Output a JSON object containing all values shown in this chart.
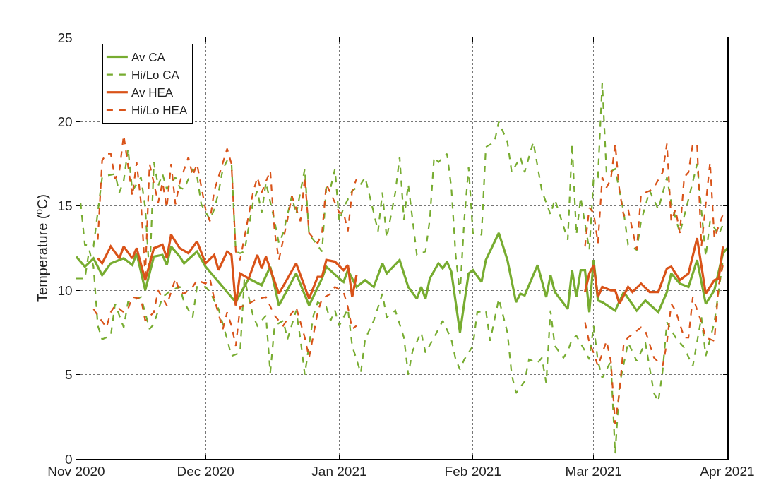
{
  "chart_data": {
    "type": "line",
    "ylabel": "Temperature (ºC)",
    "ylim": [
      0,
      25
    ],
    "yticks": [
      0,
      5,
      10,
      15,
      20,
      25
    ],
    "xlim": [
      "2020-11-01",
      "2021-04-01"
    ],
    "xticks": [
      {
        "value": "2020-11-01",
        "label": "Nov 2020"
      },
      {
        "value": "2020-12-01",
        "label": "Dec 2020"
      },
      {
        "value": "2021-01-01",
        "label": "Jan 2021"
      },
      {
        "value": "2021-02-01",
        "label": "Feb 2021"
      },
      {
        "value": "2021-03-01",
        "label": "Mar 2021"
      },
      {
        "value": "2021-04-01",
        "label": "Apr 2021"
      }
    ],
    "grid": true,
    "legend": "top left",
    "marker": "none",
    "series": [
      {
        "name": "Av CA",
        "color": "#77ac30",
        "line_style": "solid",
        "x": [
          "2020-11-01",
          "2020-11-03",
          "2020-11-05",
          "2020-11-07",
          "2020-11-09",
          "2020-11-12",
          "2020-11-14",
          "2020-11-15",
          "2020-11-17",
          "2020-11-19",
          "2020-11-21",
          "2020-11-22",
          "2020-11-23",
          "2020-11-25",
          "2020-11-26",
          "2020-11-29",
          "2020-12-01",
          "2020-12-08",
          "2020-12-11",
          "2020-12-14",
          "2020-12-16",
          "2020-12-18",
          "2020-12-22",
          "2020-12-25",
          "2020-12-28",
          "2020-12-29",
          "2021-01-01",
          "2021-01-02",
          "2021-01-03",
          "2021-01-05",
          "2021-01-07",
          "2021-01-09",
          "2021-01-11",
          "2021-01-12",
          "2021-01-15",
          "2021-01-17",
          "2021-01-19",
          "2021-01-20",
          "2021-01-21",
          "2021-01-22",
          "2021-01-24",
          "2021-01-25",
          "2021-01-26",
          "2021-01-27",
          "2021-01-29",
          "2021-01-31",
          "2021-02-01",
          "2021-02-03",
          "2021-02-04",
          "2021-02-07",
          "2021-02-09",
          "2021-02-11",
          "2021-02-12",
          "2021-02-13",
          "2021-02-16",
          "2021-02-18",
          "2021-02-19",
          "2021-02-20",
          "2021-02-23",
          "2021-02-24",
          "2021-02-25",
          "2021-02-26",
          "2021-02-27",
          "2021-02-28",
          "2021-03-01",
          "2021-03-02",
          "2021-03-03",
          "2021-03-06",
          "2021-03-08",
          "2021-03-11",
          "2021-03-13",
          "2021-03-16",
          "2021-03-18",
          "2021-03-19",
          "2021-03-21",
          "2021-03-23",
          "2021-03-25",
          "2021-03-27",
          "2021-03-29",
          "2021-03-31",
          "2021-04-01"
        ],
        "values": [
          12.0,
          11.4,
          11.9,
          10.9,
          11.6,
          11.9,
          11.5,
          12.2,
          10.0,
          12.0,
          12.1,
          11.5,
          12.6,
          12.0,
          11.6,
          12.3,
          11.4,
          9.3,
          10.7,
          10.3,
          11.4,
          9.1,
          11.0,
          9.1,
          10.7,
          11.4,
          10.7,
          10.5,
          11.2,
          10.2,
          10.6,
          10.2,
          11.6,
          11.0,
          11.8,
          10.2,
          9.5,
          10.2,
          9.5,
          10.7,
          11.6,
          11.3,
          11.7,
          11.1,
          7.5,
          11.0,
          11.2,
          10.5,
          11.8,
          13.4,
          11.8,
          9.3,
          9.8,
          9.7,
          11.5,
          9.6,
          10.9,
          9.9,
          8.9,
          11.2,
          9.6,
          11.2,
          11.2,
          8.7,
          11.8,
          9.4,
          9.3,
          8.8,
          9.9,
          8.8,
          9.4,
          8.7,
          9.9,
          11.0,
          10.4,
          10.2,
          11.8,
          9.2,
          10.0,
          12.2,
          12.5
        ]
      },
      {
        "name": "Hi/Lo CA",
        "color": "#77ac30",
        "line_style": "dashed",
        "x": [
          "2020-11-02",
          "2020-11-03",
          "2020-11-05",
          "2020-11-07",
          "2020-11-08",
          "2020-11-10",
          "2020-11-11",
          "2020-11-12",
          "2020-11-13",
          "2020-11-14",
          "2020-11-16",
          "2020-11-17",
          "2020-11-18",
          "2020-11-19",
          "2020-11-20",
          "2020-11-21",
          "2020-11-22",
          "2020-11-24",
          "2020-11-25",
          "2020-11-26",
          "2020-11-28",
          "2020-11-29",
          "2020-11-30",
          "2020-12-02",
          "2020-12-03",
          "2020-12-04",
          "2020-12-05",
          "2020-12-06",
          "2020-12-07",
          "2020-12-08",
          "2020-12-09",
          "2020-12-10",
          "2020-12-12",
          "2020-12-13",
          "2020-12-14",
          "2020-12-15",
          "2020-12-17",
          "2020-12-18",
          "2020-12-19",
          "2020-12-21",
          "2020-12-22",
          "2020-12-24",
          "2020-12-25",
          "2020-12-26",
          "2020-12-28",
          "2020-12-29",
          "2020-12-30",
          "2020-12-31",
          "2021-01-01",
          "2021-01-02",
          "2021-01-04",
          "2021-01-06",
          "2021-01-07",
          "2021-01-09",
          "2021-01-10",
          "2021-01-11",
          "2021-01-12",
          "2021-01-14",
          "2021-01-15",
          "2021-01-16",
          "2021-01-17",
          "2021-01-19",
          "2021-01-21",
          "2021-01-22",
          "2021-01-23",
          "2021-01-24",
          "2021-01-26",
          "2021-01-27",
          "2021-01-28",
          "2021-01-29",
          "2021-01-30",
          "2021-01-31",
          "2021-02-01",
          "2021-02-02",
          "2021-02-03",
          "2021-02-04",
          "2021-02-06",
          "2021-02-07",
          "2021-02-09",
          "2021-02-10",
          "2021-02-12",
          "2021-02-13",
          "2021-02-15",
          "2021-02-17",
          "2021-02-19",
          "2021-02-20",
          "2021-02-21",
          "2021-02-23",
          "2021-02-24",
          "2021-02-25",
          "2021-02-26",
          "2021-02-28",
          "2021-03-01",
          "2021-03-02",
          "2021-03-03",
          "2021-03-04",
          "2021-03-06",
          "2021-03-08",
          "2021-03-09",
          "2021-03-11",
          "2021-03-12",
          "2021-03-14",
          "2021-03-16",
          "2021-03-18",
          "2021-03-19",
          "2021-03-21",
          "2021-03-23",
          "2021-03-25",
          "2021-03-27",
          "2021-03-28",
          "2021-03-30",
          "2021-03-31"
        ],
        "values": [
          15.2,
          12.7,
          12.6,
          16.7,
          16.8,
          16.9,
          15.8,
          16.5,
          18.4,
          15.9,
          16.7,
          14.9,
          10.8,
          17.6,
          16.2,
          16.9,
          16.0,
          16.7,
          16.1,
          16.0,
          17.2,
          16.8,
          15.1,
          14.2,
          14.8,
          15.8,
          17.2,
          17.7,
          17.6,
          12.3,
          12.2,
          12.3,
          15.2,
          15.9,
          14.6,
          16.4,
          14.1,
          12.8,
          13.4,
          15.6,
          14.5,
          17.2,
          13.3,
          13.0,
          12.3,
          16.2,
          16.1,
          17.2,
          14.1,
          14.9,
          15.9,
          16.3,
          16.7,
          14.6,
          13.5,
          15.8,
          13.1,
          15.8,
          17.9,
          14.2,
          16.3,
          12.1,
          12.3,
          14.2,
          17.9,
          17.6,
          18.1,
          16.1,
          12.1,
          9.8,
          14.2,
          17.3,
          13.4,
          13.3,
          13.3,
          18.5,
          18.8,
          20.0,
          18.8,
          17.0,
          17.9,
          17.0,
          18.8,
          15.9,
          14.5,
          15.4,
          14.6,
          13.0,
          18.7,
          13.3,
          15.5,
          12.4,
          16.7,
          16.7,
          22.3,
          16.9,
          17.2,
          14.6,
          12.7,
          12.4,
          14.1,
          15.9,
          14.8,
          16.7,
          15.2,
          13.4,
          15.4,
          17.5,
          12.0,
          14.1,
          13.3,
          13.9
        ]
      },
      {
        "color": "#77ac30",
        "line_style": "dashed",
        "x": [
          "2020-11-01",
          "2020-11-03",
          "2020-11-04",
          "2020-11-05",
          "2020-11-06",
          "2020-11-07",
          "2020-11-09",
          "2020-11-10",
          "2020-11-12",
          "2020-11-13",
          "2020-11-16",
          "2020-11-18",
          "2020-11-19",
          "2020-11-21",
          "2020-11-23",
          "2020-11-25",
          "2020-11-26",
          "2020-11-28",
          "2020-11-29",
          "2020-12-01",
          "2020-12-02",
          "2020-12-04",
          "2020-12-06",
          "2020-12-07",
          "2020-12-09",
          "2020-12-10",
          "2020-12-12",
          "2020-12-13",
          "2020-12-15",
          "2020-12-16",
          "2020-12-17",
          "2020-12-19",
          "2020-12-20",
          "2020-12-22",
          "2020-12-23",
          "2020-12-24",
          "2020-12-26",
          "2020-12-27",
          "2020-12-29",
          "2020-12-30",
          "2020-12-31",
          "2021-01-01",
          "2021-01-03",
          "2021-01-04",
          "2021-01-06",
          "2021-01-07",
          "2021-01-09",
          "2021-01-11",
          "2021-01-12",
          "2021-01-14",
          "2021-01-16",
          "2021-01-17",
          "2021-01-18",
          "2021-01-20",
          "2021-01-21",
          "2021-01-23",
          "2021-01-25",
          "2021-01-27",
          "2021-01-28",
          "2021-01-29",
          "2021-01-30",
          "2021-02-01",
          "2021-02-02",
          "2021-02-04",
          "2021-02-05",
          "2021-02-07",
          "2021-02-09",
          "2021-02-10",
          "2021-02-11",
          "2021-02-13",
          "2021-02-14",
          "2021-02-16",
          "2021-02-17",
          "2021-02-18",
          "2021-02-19",
          "2021-02-20",
          "2021-02-22",
          "2021-02-23",
          "2021-02-24",
          "2021-02-25",
          "2021-02-27",
          "2021-02-28",
          "2021-03-01",
          "2021-03-02",
          "2021-03-03",
          "2021-03-05",
          "2021-03-06",
          "2021-03-07",
          "2021-03-09",
          "2021-03-11",
          "2021-03-13",
          "2021-03-15",
          "2021-03-16",
          "2021-03-17",
          "2021-03-18",
          "2021-03-20",
          "2021-03-22",
          "2021-03-24",
          "2021-03-26",
          "2021-03-27",
          "2021-03-29",
          "2021-03-31"
        ],
        "values": [
          10.7,
          10.7,
          12.4,
          11.4,
          7.9,
          7.1,
          7.3,
          9.2,
          7.8,
          9.3,
          9.6,
          7.7,
          8.0,
          9.6,
          10.0,
          10.2,
          9.3,
          8.4,
          10.2,
          10.2,
          9.9,
          8.9,
          7.1,
          6.1,
          6.3,
          10.7,
          8.5,
          7.9,
          8.5,
          5.1,
          7.9,
          8.2,
          7.1,
          8.8,
          7.1,
          5.0,
          8.5,
          9.3,
          9.0,
          8.2,
          8.8,
          7.9,
          8.9,
          6.7,
          5.1,
          7.1,
          8.2,
          9.8,
          8.4,
          8.8,
          7.2,
          5.0,
          6.4,
          7.5,
          6.3,
          7.2,
          8.2,
          7.1,
          5.9,
          5.3,
          5.9,
          6.7,
          8.7,
          8.8,
          7.0,
          9.5,
          7.5,
          5.0,
          3.9,
          4.6,
          5.9,
          5.7,
          6.0,
          4.5,
          8.8,
          6.7,
          6.0,
          6.4,
          7.1,
          7.3,
          6.4,
          5.9,
          7.9,
          5.8,
          4.8,
          5.8,
          0.3,
          4.4,
          6.9,
          5.8,
          6.9,
          3.9,
          3.4,
          5.2,
          8.1,
          7.2,
          6.6,
          5.5,
          8.4,
          6.1,
          8.1,
          11.8
        ]
      },
      {
        "name": "Av HEA",
        "color": "#d95319",
        "line_style": "solid",
        "x": [
          "2020-11-06",
          "2020-11-07",
          "2020-11-09",
          "2020-11-11",
          "2020-11-12",
          "2020-11-14",
          "2020-11-15",
          "2020-11-17",
          "2020-11-19",
          "2020-11-21",
          "2020-11-22",
          "2020-11-23",
          "2020-11-25",
          "2020-11-27",
          "2020-11-29",
          "2020-12-01",
          "2020-12-03",
          "2020-12-04",
          "2020-12-06",
          "2020-12-07",
          "2020-12-08",
          "2020-12-09",
          "2020-12-11",
          "2020-12-13",
          "2020-12-14",
          "2020-12-15",
          "2020-12-18",
          "2020-12-20",
          "2020-12-22",
          "2020-12-25",
          "2020-12-27",
          "2020-12-28",
          "2020-12-29",
          "2020-12-31",
          "2021-01-02",
          "2021-01-03",
          "2021-01-04",
          "2021-01-05",
          "2021-02-01",
          "2021-02-27",
          "2021-02-28",
          "2021-03-01",
          "2021-03-02",
          "2021-03-03",
          "2021-03-05",
          "2021-03-06",
          "2021-03-07",
          "2021-03-09",
          "2021-03-10",
          "2021-03-12",
          "2021-03-14",
          "2021-03-16",
          "2021-03-18",
          "2021-03-19",
          "2021-03-21",
          "2021-03-23",
          "2021-03-25",
          "2021-03-27",
          "2021-03-29",
          "2021-03-30",
          "2021-03-31"
        ],
        "values": [
          11.9,
          11.6,
          12.6,
          11.9,
          12.6,
          11.9,
          12.5,
          10.6,
          12.5,
          12.7,
          11.9,
          13.3,
          12.5,
          12.2,
          12.9,
          11.6,
          12.1,
          11.2,
          12.3,
          12.1,
          9.1,
          11.0,
          10.7,
          12.1,
          11.3,
          12.0,
          9.8,
          10.7,
          11.6,
          9.5,
          10.8,
          10.8,
          11.8,
          11.7,
          11.2,
          11.5,
          9.6,
          10.9,
          null,
          9.9,
          11.0,
          11.5,
          9.6,
          10.2,
          10.0,
          10.0,
          9.2,
          10.2,
          9.9,
          10.4,
          9.9,
          9.9,
          11.3,
          11.4,
          10.6,
          11.0,
          13.1,
          9.8,
          10.6,
          10.7,
          12.6
        ]
      },
      {
        "name": "Hi/Lo HEA",
        "color": "#d95319",
        "line_style": "dashed",
        "x": [
          "2020-11-06",
          "2020-11-07",
          "2020-11-08",
          "2020-11-09",
          "2020-11-10",
          "2020-11-11",
          "2020-11-12",
          "2020-11-14",
          "2020-11-15",
          "2020-11-16",
          "2020-11-17",
          "2020-11-18",
          "2020-11-20",
          "2020-11-21",
          "2020-11-22",
          "2020-11-23",
          "2020-11-24",
          "2020-11-25",
          "2020-11-27",
          "2020-11-28",
          "2020-11-29",
          "2020-12-01",
          "2020-12-02",
          "2020-12-03",
          "2020-12-06",
          "2020-12-07",
          "2020-12-08",
          "2020-12-09",
          "2020-12-12",
          "2020-12-13",
          "2020-12-14",
          "2020-12-16",
          "2020-12-17",
          "2020-12-18",
          "2020-12-20",
          "2020-12-21",
          "2020-12-23",
          "2020-12-24",
          "2020-12-25",
          "2020-12-27",
          "2020-12-28",
          "2020-12-29",
          "2020-12-31",
          "2021-01-01",
          "2021-01-02",
          "2021-01-03",
          "2021-01-04",
          "2021-01-05",
          "2021-02-01",
          "2021-02-27",
          "2021-02-28",
          "2021-03-01",
          "2021-03-02",
          "2021-03-03",
          "2021-03-04",
          "2021-03-05",
          "2021-03-06",
          "2021-03-07",
          "2021-03-08",
          "2021-03-09",
          "2021-03-11",
          "2021-03-12",
          "2021-03-14",
          "2021-03-15",
          "2021-03-17",
          "2021-03-18",
          "2021-03-19",
          "2021-03-20",
          "2021-03-21",
          "2021-03-22",
          "2021-03-23",
          "2021-03-24",
          "2021-03-25",
          "2021-03-26",
          "2021-03-28",
          "2021-03-29",
          "2021-03-31"
        ],
        "values": [
          13.0,
          17.7,
          18.1,
          18.1,
          16.6,
          17.1,
          19.2,
          15.6,
          17.6,
          15.2,
          10.9,
          17.5,
          15.2,
          16.4,
          14.9,
          17.5,
          15.1,
          16.4,
          17.9,
          16.8,
          17.5,
          14.8,
          14.1,
          15.9,
          18.4,
          17.5,
          12.3,
          11.8,
          15.8,
          16.7,
          15.8,
          17.1,
          13.5,
          11.8,
          14.2,
          15.6,
          14.1,
          16.7,
          13.4,
          12.8,
          13.4,
          16.3,
          15.2,
          14.6,
          14.6,
          13.5,
          15.9,
          16.6,
          null,
          12.6,
          14.9,
          14.6,
          12.8,
          16.7,
          16.1,
          16.6,
          18.7,
          15.9,
          14.4,
          14.8,
          12.4,
          15.7,
          15.9,
          16.1,
          17.0,
          18.7,
          14.1,
          14.8,
          13.4,
          16.7,
          17.0,
          18.7,
          18.6,
          12.6,
          17.6,
          13.1,
          14.5
        ]
      },
      {
        "color": "#d95319",
        "line_style": "dashed",
        "x": [
          "2020-11-05",
          "2020-11-06",
          "2020-11-08",
          "2020-11-09",
          "2020-11-10",
          "2020-11-12",
          "2020-11-13",
          "2020-11-14",
          "2020-11-16",
          "2020-11-17",
          "2020-11-19",
          "2020-11-20",
          "2020-11-22",
          "2020-11-24",
          "2020-11-25",
          "2020-11-26",
          "2020-11-28",
          "2020-11-29",
          "2020-12-01",
          "2020-12-02",
          "2020-12-03",
          "2020-12-05",
          "2020-12-06",
          "2020-12-07",
          "2020-12-08",
          "2020-12-09",
          "2020-12-11",
          "2020-12-13",
          "2020-12-15",
          "2020-12-17",
          "2020-12-19",
          "2020-12-20",
          "2020-12-22",
          "2020-12-24",
          "2020-12-25",
          "2020-12-27",
          "2020-12-28",
          "2020-12-30",
          "2020-12-31",
          "2021-01-02",
          "2021-01-03",
          "2021-01-04",
          "2021-01-05",
          "2021-02-01",
          "2021-02-27",
          "2021-02-28",
          "2021-03-01",
          "2021-03-02",
          "2021-03-04",
          "2021-03-05",
          "2021-03-06",
          "2021-03-07",
          "2021-03-08",
          "2021-03-09",
          "2021-03-12",
          "2021-03-13",
          "2021-03-15",
          "2021-03-17",
          "2021-03-18",
          "2021-03-19",
          "2021-03-20",
          "2021-03-22",
          "2021-03-23",
          "2021-03-24",
          "2021-03-26",
          "2021-03-27",
          "2021-03-29",
          "2021-03-30",
          "2021-03-31"
        ],
        "values": [
          8.9,
          8.5,
          7.8,
          8.7,
          9.1,
          8.7,
          8.9,
          9.6,
          9.5,
          8.2,
          8.7,
          10.0,
          9.1,
          10.7,
          9.9,
          9.8,
          10.2,
          10.6,
          10.4,
          10.7,
          9.5,
          7.7,
          8.7,
          7.9,
          6.7,
          9.0,
          9.2,
          9.5,
          9.6,
          8.5,
          7.9,
          8.3,
          9.0,
          7.2,
          6.0,
          8.7,
          9.5,
          9.8,
          10.2,
          9.9,
          9.0,
          7.7,
          7.9,
          null,
          8.1,
          6.9,
          6.3,
          5.5,
          7.0,
          5.8,
          2.1,
          4.0,
          6.9,
          7.2,
          7.8,
          7.6,
          6.0,
          5.5,
          6.9,
          9.2,
          8.8,
          7.2,
          7.2,
          9.6,
          8.1,
          7.2,
          7.0,
          10.3,
          11.5
        ]
      }
    ]
  }
}
